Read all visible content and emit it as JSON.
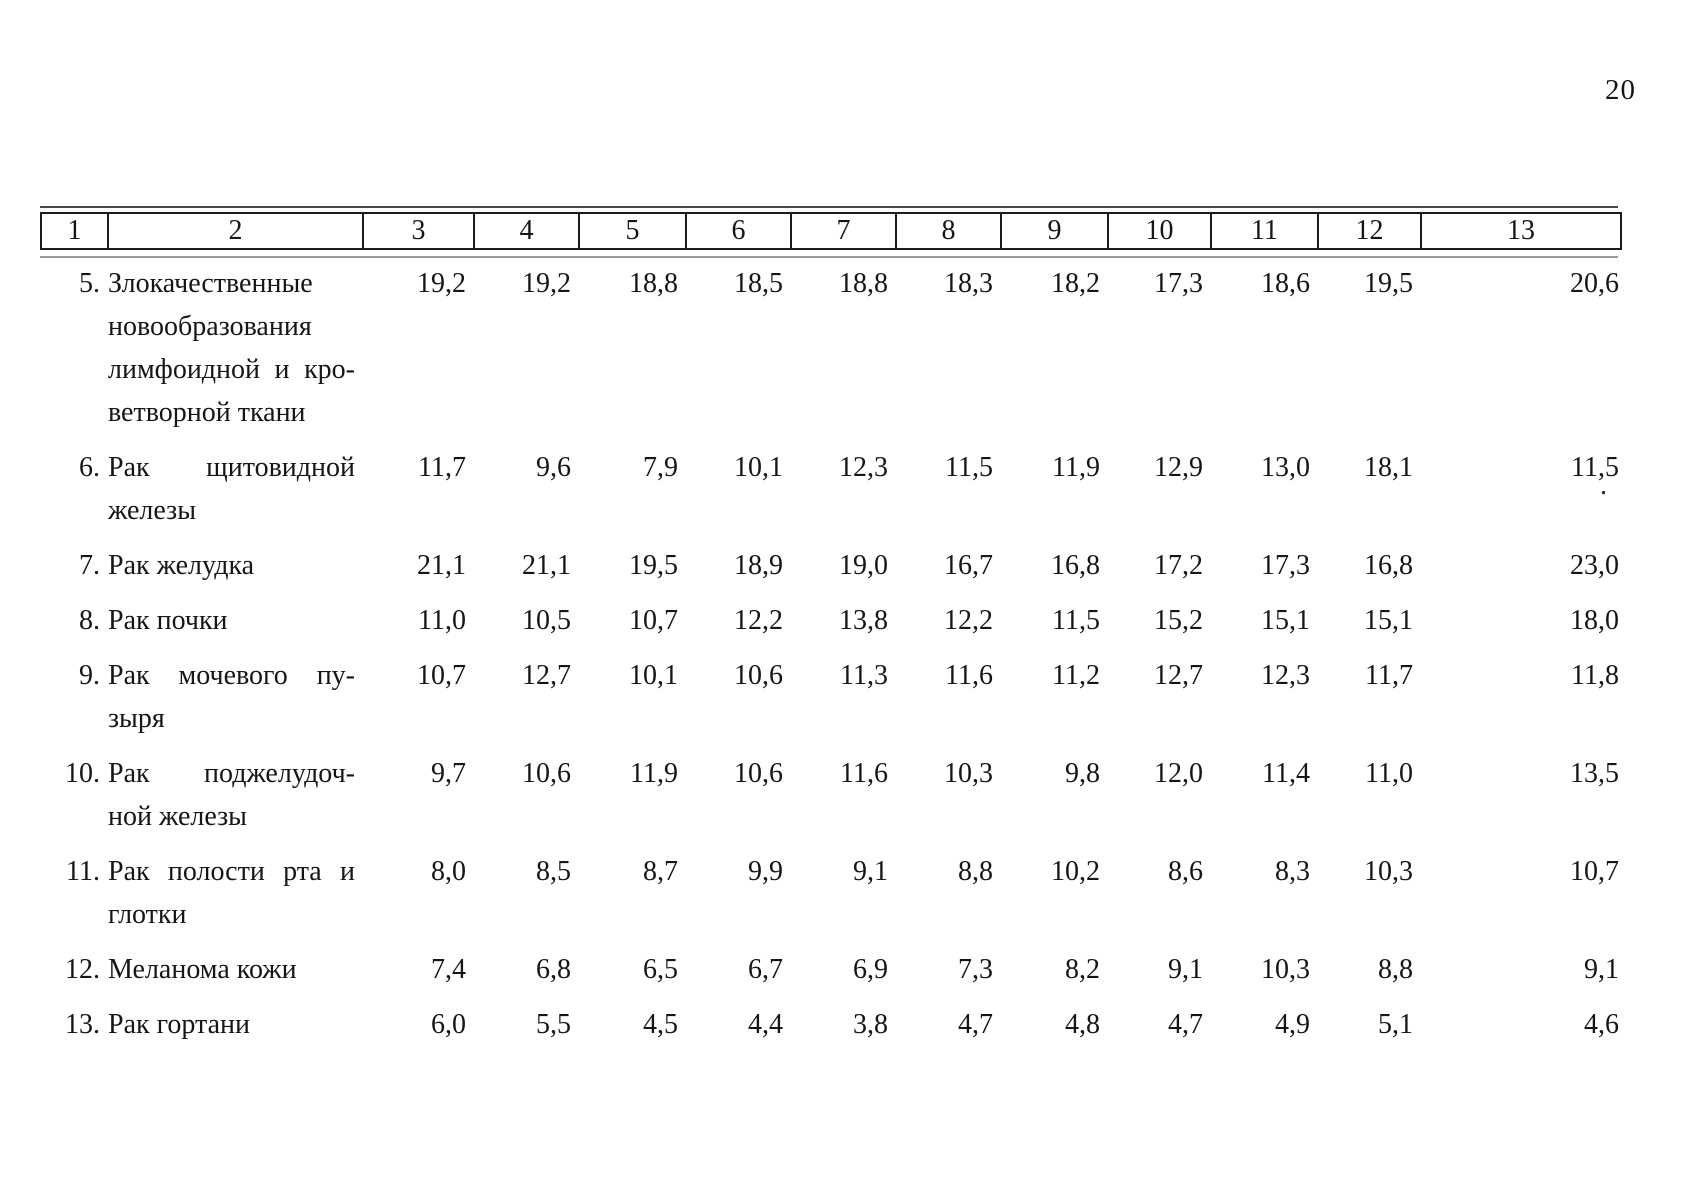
{
  "page": {
    "number": "20"
  },
  "table": {
    "header": [
      "1",
      "2",
      "3",
      "4",
      "5",
      "6",
      "7",
      "8",
      "9",
      "10",
      "11",
      "12",
      "13"
    ],
    "rows": [
      {
        "num": "5.",
        "name_lines": [
          "Злокачественные",
          "новообразования",
          "лимфоидной и кро-",
          "ветворной ткани"
        ],
        "values": [
          "19,2",
          "19,2",
          "18,8",
          "18,5",
          "18,8",
          "18,3",
          "18,2",
          "17,3",
          "18,6",
          "19,5",
          "20,6"
        ]
      },
      {
        "num": "6.",
        "name_lines": [
          "Рак щитовидной",
          "железы"
        ],
        "values": [
          "11,7",
          "9,6",
          "7,9",
          "10,1",
          "12,3",
          "11,5",
          "11,9",
          "12,9",
          "13,0",
          "18,1",
          "11,5"
        ]
      },
      {
        "num": "7.",
        "name_lines": [
          "Рак желудка"
        ],
        "values": [
          "21,1",
          "21,1",
          "19,5",
          "18,9",
          "19,0",
          "16,7",
          "16,8",
          "17,2",
          "17,3",
          "16,8",
          "23,0"
        ]
      },
      {
        "num": "8.",
        "name_lines": [
          "Рак почки"
        ],
        "values": [
          "11,0",
          "10,5",
          "10,7",
          "12,2",
          "13,8",
          "12,2",
          "11,5",
          "15,2",
          "15,1",
          "15,1",
          "18,0"
        ]
      },
      {
        "num": "9.",
        "name_lines": [
          "Рак мочевого пу-",
          "зыря"
        ],
        "values": [
          "10,7",
          "12,7",
          "10,1",
          "10,6",
          "11,3",
          "11,6",
          "11,2",
          "12,7",
          "12,3",
          "11,7",
          "11,8"
        ]
      },
      {
        "num": "10.",
        "name_lines": [
          "Рак поджелудоч-",
          "ной железы"
        ],
        "values": [
          "9,7",
          "10,6",
          "11,9",
          "10,6",
          "11,6",
          "10,3",
          "9,8",
          "12,0",
          "11,4",
          "11,0",
          "13,5"
        ]
      },
      {
        "num": "11.",
        "name_lines": [
          "Рак полости рта и",
          "глотки"
        ],
        "values": [
          "8,0",
          "8,5",
          "8,7",
          "9,9",
          "9,1",
          "8,8",
          "10,2",
          "8,6",
          "8,3",
          "10,3",
          "10,7"
        ]
      },
      {
        "num": "12.",
        "name_lines": [
          "Меланома кожи"
        ],
        "values": [
          "7,4",
          "6,8",
          "6,5",
          "6,7",
          "6,9",
          "7,3",
          "8,2",
          "9,1",
          "10,3",
          "8,8",
          "9,1"
        ]
      },
      {
        "num": "13.",
        "name_lines": [
          "Рак гортани"
        ],
        "values": [
          "6,0",
          "5,5",
          "4,5",
          "4,4",
          "3,8",
          "4,7",
          "4,8",
          "4,7",
          "4,9",
          "5,1",
          "4,6"
        ]
      }
    ]
  },
  "artifacts": {
    "stray_dot": "."
  }
}
